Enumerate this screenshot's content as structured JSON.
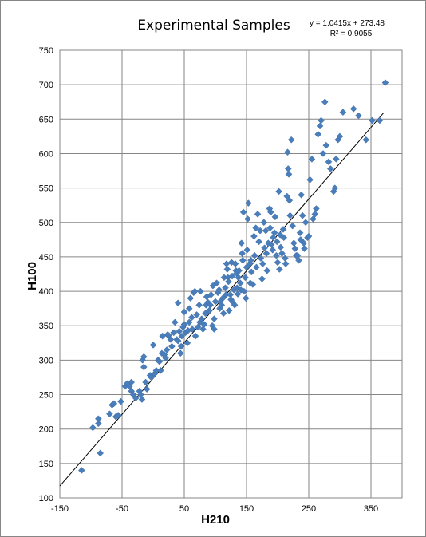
{
  "chart_data": {
    "type": "scatter",
    "title": "Experimental Samples",
    "xlabel": "H210",
    "ylabel": "H100",
    "xlim": [
      -150,
      400
    ],
    "ylim": [
      100,
      750
    ],
    "xticks": [
      -150,
      -50,
      50,
      150,
      250,
      350
    ],
    "yticks": [
      100,
      150,
      200,
      250,
      300,
      350,
      400,
      450,
      500,
      550,
      600,
      650,
      700,
      750
    ],
    "grid": true,
    "legend": "none",
    "marker": "diamond",
    "marker_color": "#4A7EBB",
    "trendline": {
      "type": "linear",
      "slope": 1.0415,
      "intercept": 273.48,
      "x_range": [
        -150,
        370
      ],
      "color": "#000000",
      "equation_text": "y = 1.0415x + 273.48",
      "r2_text": "R² = 0.9055"
    },
    "points": [
      [
        -115,
        140
      ],
      [
        -97,
        202
      ],
      [
        -88,
        208
      ],
      [
        -88,
        215
      ],
      [
        -85,
        165
      ],
      [
        -70,
        222
      ],
      [
        -66,
        235
      ],
      [
        -63,
        237
      ],
      [
        -60,
        218
      ],
      [
        -56,
        220
      ],
      [
        -52,
        240
      ],
      [
        -45,
        262
      ],
      [
        -42,
        266
      ],
      [
        -38,
        262
      ],
      [
        -35,
        268
      ],
      [
        -35,
        255
      ],
      [
        -32,
        250
      ],
      [
        -28,
        245
      ],
      [
        -22,
        255
      ],
      [
        -20,
        250
      ],
      [
        -18,
        243
      ],
      [
        -17,
        300
      ],
      [
        -15,
        305
      ],
      [
        -15,
        290
      ],
      [
        -12,
        268
      ],
      [
        -10,
        258
      ],
      [
        -5,
        278
      ],
      [
        -3,
        275
      ],
      [
        0,
        322
      ],
      [
        2,
        280
      ],
      [
        5,
        285
      ],
      [
        8,
        300
      ],
      [
        10,
        298
      ],
      [
        12,
        285
      ],
      [
        14,
        310
      ],
      [
        15,
        335
      ],
      [
        18,
        308
      ],
      [
        20,
        303
      ],
      [
        22,
        315
      ],
      [
        23,
        337
      ],
      [
        25,
        336
      ],
      [
        28,
        330
      ],
      [
        30,
        320
      ],
      [
        33,
        340
      ],
      [
        35,
        355
      ],
      [
        38,
        330
      ],
      [
        40,
        328
      ],
      [
        40,
        383
      ],
      [
        42,
        342
      ],
      [
        44,
        310
      ],
      [
        45,
        320
      ],
      [
        46,
        335
      ],
      [
        48,
        348
      ],
      [
        50,
        352
      ],
      [
        50,
        370
      ],
      [
        52,
        340
      ],
      [
        55,
        325
      ],
      [
        56,
        343
      ],
      [
        58,
        375
      ],
      [
        58,
        355
      ],
      [
        60,
        390
      ],
      [
        62,
        362
      ],
      [
        63,
        345
      ],
      [
        65,
        398
      ],
      [
        67,
        400
      ],
      [
        68,
        335
      ],
      [
        70,
        366
      ],
      [
        72,
        348
      ],
      [
        74,
        380
      ],
      [
        75,
        355
      ],
      [
        76,
        400
      ],
      [
        78,
        360
      ],
      [
        80,
        345
      ],
      [
        82,
        352
      ],
      [
        84,
        368
      ],
      [
        85,
        380
      ],
      [
        86,
        392
      ],
      [
        88,
        384
      ],
      [
        90,
        372
      ],
      [
        92,
        380
      ],
      [
        93,
        395
      ],
      [
        95,
        350
      ],
      [
        96,
        408
      ],
      [
        98,
        360
      ],
      [
        98,
        345
      ],
      [
        100,
        385
      ],
      [
        102,
        412
      ],
      [
        104,
        398
      ],
      [
        106,
        402
      ],
      [
        107,
        375
      ],
      [
        108,
        385
      ],
      [
        110,
        380
      ],
      [
        112,
        390
      ],
      [
        113,
        368
      ],
      [
        114,
        420
      ],
      [
        116,
        405
      ],
      [
        117,
        395
      ],
      [
        118,
        440
      ],
      [
        119,
        432
      ],
      [
        120,
        420
      ],
      [
        121,
        414
      ],
      [
        122,
        372
      ],
      [
        124,
        395
      ],
      [
        125,
        388
      ],
      [
        126,
        442
      ],
      [
        127,
        422
      ],
      [
        128,
        384
      ],
      [
        130,
        402
      ],
      [
        131,
        380
      ],
      [
        132,
        440
      ],
      [
        133,
        430
      ],
      [
        134,
        426
      ],
      [
        135,
        405
      ],
      [
        136,
        396
      ],
      [
        137,
        420
      ],
      [
        138,
        430
      ],
      [
        140,
        412
      ],
      [
        141,
        402
      ],
      [
        142,
        470
      ],
      [
        143,
        455
      ],
      [
        144,
        445
      ],
      [
        145,
        515
      ],
      [
        146,
        400
      ],
      [
        148,
        420
      ],
      [
        149,
        390
      ],
      [
        150,
        435
      ],
      [
        151,
        460
      ],
      [
        152,
        505
      ],
      [
        153,
        528
      ],
      [
        155,
        440
      ],
      [
        156,
        412
      ],
      [
        157,
        445
      ],
      [
        158,
        428
      ],
      [
        160,
        410
      ],
      [
        162,
        480
      ],
      [
        163,
        452
      ],
      [
        165,
        492
      ],
      [
        166,
        435
      ],
      [
        168,
        512
      ],
      [
        170,
        472
      ],
      [
        172,
        488
      ],
      [
        173,
        448
      ],
      [
        175,
        418
      ],
      [
        176,
        440
      ],
      [
        178,
        500
      ],
      [
        179,
        463
      ],
      [
        181,
        488
      ],
      [
        182,
        455
      ],
      [
        183,
        430
      ],
      [
        185,
        470
      ],
      [
        187,
        520
      ],
      [
        188,
        492
      ],
      [
        189,
        515
      ],
      [
        190,
        468
      ],
      [
        192,
        460
      ],
      [
        193,
        478
      ],
      [
        195,
        485
      ],
      [
        196,
        508
      ],
      [
        198,
        452
      ],
      [
        199,
        472
      ],
      [
        200,
        442
      ],
      [
        202,
        545
      ],
      [
        203,
        432
      ],
      [
        204,
        482
      ],
      [
        205,
        464
      ],
      [
        207,
        455
      ],
      [
        209,
        490
      ],
      [
        210,
        478
      ],
      [
        212,
        448
      ],
      [
        213,
        440
      ],
      [
        215,
        538
      ],
      [
        216,
        602
      ],
      [
        217,
        578
      ],
      [
        218,
        570
      ],
      [
        219,
        532
      ],
      [
        220,
        510
      ],
      [
        222,
        620
      ],
      [
        224,
        495
      ],
      [
        226,
        470
      ],
      [
        228,
        462
      ],
      [
        230,
        452
      ],
      [
        232,
        452
      ],
      [
        234,
        445
      ],
      [
        236,
        485
      ],
      [
        237,
        475
      ],
      [
        238,
        540
      ],
      [
        240,
        510
      ],
      [
        242,
        470
      ],
      [
        243,
        462
      ],
      [
        245,
        500
      ],
      [
        248,
        478
      ],
      [
        250,
        480
      ],
      [
        252,
        562
      ],
      [
        255,
        592
      ],
      [
        257,
        505
      ],
      [
        260,
        512
      ],
      [
        262,
        520
      ],
      [
        265,
        628
      ],
      [
        268,
        640
      ],
      [
        270,
        648
      ],
      [
        273,
        600
      ],
      [
        276,
        675
      ],
      [
        278,
        612
      ],
      [
        282,
        588
      ],
      [
        285,
        578
      ],
      [
        290,
        545
      ],
      [
        292,
        550
      ],
      [
        294,
        592
      ],
      [
        297,
        620
      ],
      [
        300,
        625
      ],
      [
        305,
        660
      ],
      [
        322,
        665
      ],
      [
        330,
        655
      ],
      [
        342,
        620
      ],
      [
        352,
        648
      ],
      [
        364,
        648
      ],
      [
        373,
        703
      ]
    ]
  }
}
